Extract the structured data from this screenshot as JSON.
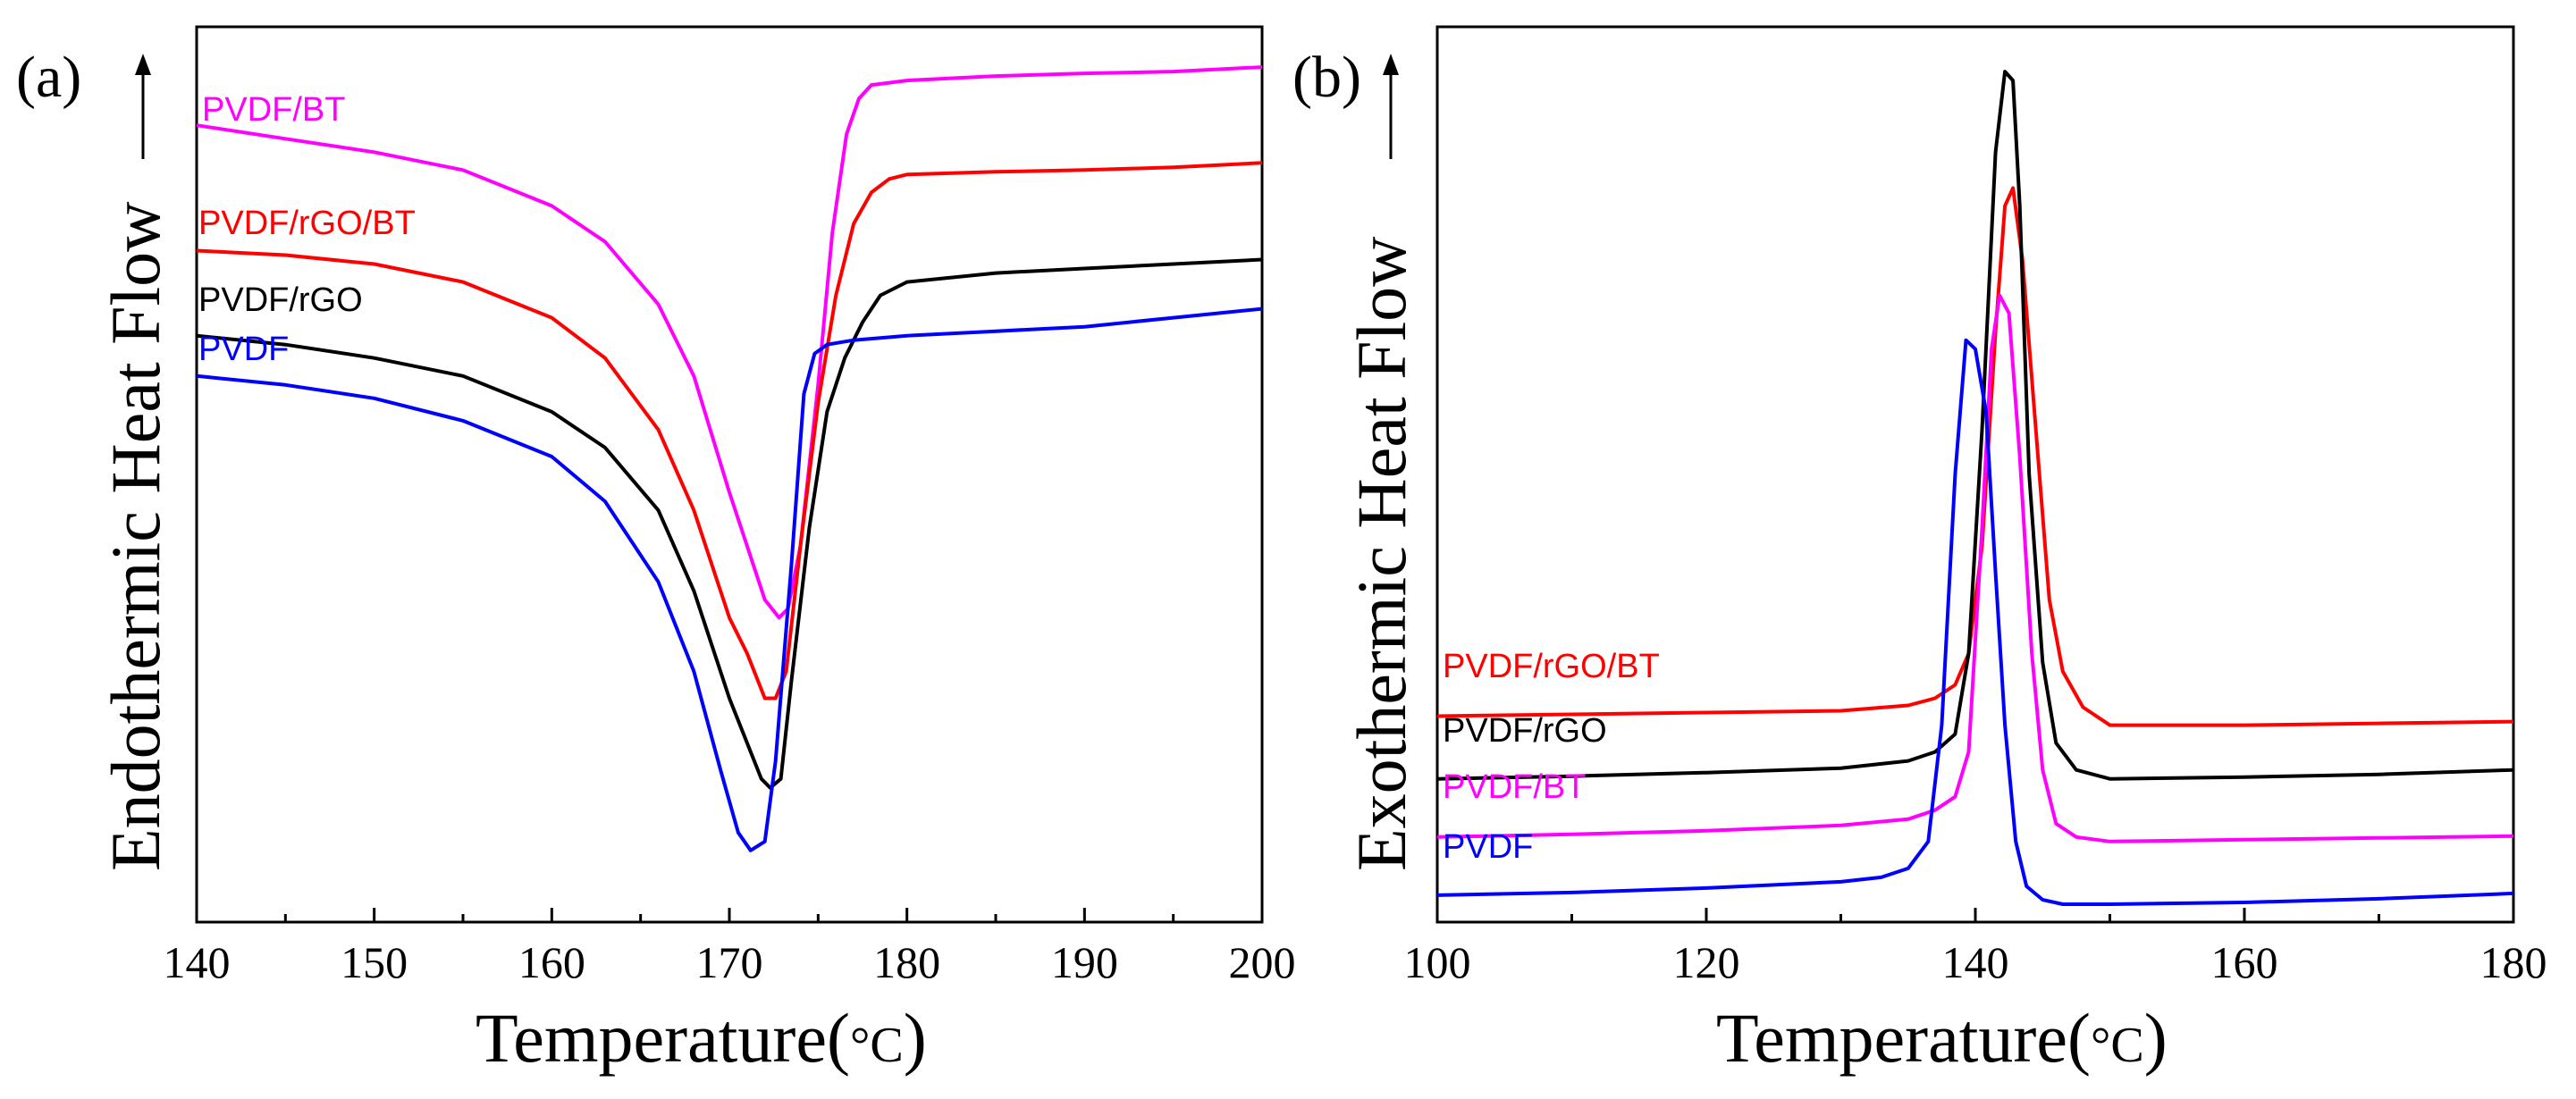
{
  "chart_data": [
    {
      "panel": "(a)",
      "type": "line",
      "xlabel": "Temperature(",
      "xunit": "°C",
      "xunit_close": ")",
      "ylabel": "Endothermic Heat Flow",
      "xlim": [
        140,
        200
      ],
      "ylim": [
        0,
        1
      ],
      "xticks": [
        140,
        150,
        160,
        170,
        180,
        190,
        200
      ],
      "xtick_labels": [
        "140",
        "150",
        "160",
        "170",
        "180",
        "190",
        "200"
      ],
      "y_axis_arrow": "up",
      "series": [
        {
          "name": "PVDF/BT",
          "color": "#ff00ff",
          "x": [
            140,
            145,
            150,
            155,
            160,
            163,
            166,
            168,
            170,
            171,
            172,
            172.8,
            173.3,
            174,
            175,
            175.8,
            176.6,
            177.3,
            178,
            180,
            185,
            190,
            195,
            200
          ],
          "y": [
            0.89,
            0.875,
            0.86,
            0.84,
            0.8,
            0.76,
            0.69,
            0.61,
            0.48,
            0.42,
            0.36,
            0.34,
            0.35,
            0.42,
            0.6,
            0.77,
            0.88,
            0.92,
            0.935,
            0.94,
            0.945,
            0.948,
            0.95,
            0.955
          ]
        },
        {
          "name": "PVDF/rGO/BT",
          "color": "#ff0000",
          "x": [
            140,
            145,
            150,
            155,
            160,
            163,
            166,
            168,
            170,
            171,
            172,
            172.6,
            173.2,
            174,
            175,
            176,
            177,
            178,
            179,
            180,
            185,
            190,
            195,
            200
          ],
          "y": [
            0.75,
            0.745,
            0.735,
            0.715,
            0.675,
            0.63,
            0.55,
            0.46,
            0.34,
            0.3,
            0.25,
            0.25,
            0.28,
            0.42,
            0.58,
            0.7,
            0.78,
            0.815,
            0.83,
            0.835,
            0.838,
            0.84,
            0.843,
            0.848
          ]
        },
        {
          "name": "PVDF/rGO",
          "color": "#000000",
          "x": [
            140,
            145,
            150,
            155,
            160,
            163,
            166,
            168,
            170,
            171,
            171.8,
            172.3,
            172.9,
            173.5,
            174.5,
            175.5,
            176.5,
            177.5,
            178.5,
            180,
            185,
            190,
            195,
            200
          ],
          "y": [
            0.655,
            0.645,
            0.63,
            0.61,
            0.57,
            0.53,
            0.46,
            0.37,
            0.25,
            0.2,
            0.16,
            0.15,
            0.16,
            0.27,
            0.44,
            0.57,
            0.63,
            0.67,
            0.7,
            0.715,
            0.725,
            0.73,
            0.735,
            0.74
          ]
        },
        {
          "name": "PVDF",
          "color": "#0000ff",
          "x": [
            140,
            145,
            150,
            155,
            160,
            163,
            166,
            168,
            169.5,
            170.5,
            171.2,
            172,
            172.6,
            173.5,
            174.2,
            174.8,
            175.5,
            177,
            180,
            185,
            190,
            195,
            200
          ],
          "y": [
            0.61,
            0.6,
            0.585,
            0.56,
            0.52,
            0.47,
            0.38,
            0.28,
            0.17,
            0.1,
            0.08,
            0.09,
            0.18,
            0.4,
            0.59,
            0.635,
            0.645,
            0.65,
            0.655,
            0.66,
            0.665,
            0.675,
            0.685
          ]
        }
      ]
    },
    {
      "panel": "(b)",
      "type": "line",
      "xlabel": "Temperature(",
      "xunit": "°C",
      "xunit_close": ")",
      "ylabel": "Exothermic Heat Flow",
      "xlim": [
        100,
        180
      ],
      "ylim": [
        0,
        1
      ],
      "xticks": [
        100,
        120,
        140,
        160,
        180
      ],
      "xtick_labels": [
        "100",
        "120",
        "140",
        "160",
        "180"
      ],
      "y_axis_arrow": "up",
      "series": [
        {
          "name": "PVDF/rGO/BT",
          "color": "#ff0000",
          "x": [
            100,
            110,
            120,
            130,
            135,
            137,
            138.5,
            139.5,
            140.5,
            141.5,
            142.2,
            142.8,
            143.5,
            144.5,
            145.5,
            146.5,
            148,
            150,
            160,
            170,
            180
          ],
          "y": [
            0.23,
            0.232,
            0.234,
            0.236,
            0.242,
            0.25,
            0.265,
            0.3,
            0.42,
            0.66,
            0.8,
            0.82,
            0.74,
            0.55,
            0.36,
            0.28,
            0.24,
            0.22,
            0.22,
            0.222,
            0.224
          ]
        },
        {
          "name": "PVDF/rGO",
          "color": "#000000",
          "x": [
            100,
            110,
            120,
            130,
            135,
            137,
            138.5,
            139.5,
            140.5,
            141.5,
            142.2,
            142.8,
            143.3,
            144,
            145,
            146,
            147.5,
            150,
            160,
            170,
            180
          ],
          "y": [
            0.16,
            0.163,
            0.167,
            0.172,
            0.18,
            0.19,
            0.21,
            0.3,
            0.55,
            0.86,
            0.95,
            0.94,
            0.8,
            0.5,
            0.29,
            0.2,
            0.17,
            0.16,
            0.162,
            0.165,
            0.17
          ]
        },
        {
          "name": "PVDF/BT",
          "color": "#ff00ff",
          "x": [
            100,
            110,
            120,
            130,
            135,
            137,
            138.5,
            139.5,
            140.5,
            141.2,
            141.8,
            142.5,
            143.3,
            144.2,
            145,
            146,
            147.5,
            150,
            160,
            170,
            180
          ],
          "y": [
            0.095,
            0.098,
            0.102,
            0.108,
            0.115,
            0.125,
            0.14,
            0.19,
            0.44,
            0.64,
            0.7,
            0.68,
            0.52,
            0.3,
            0.17,
            0.11,
            0.095,
            0.09,
            0.092,
            0.094,
            0.096
          ]
        },
        {
          "name": "PVDF",
          "color": "#0000ff",
          "x": [
            100,
            110,
            120,
            130,
            133,
            135,
            136.5,
            137.5,
            138.5,
            139.3,
            140,
            140.8,
            141.5,
            142.2,
            143,
            143.8,
            145,
            146.5,
            150,
            160,
            170,
            180
          ],
          "y": [
            0.03,
            0.033,
            0.038,
            0.045,
            0.05,
            0.06,
            0.09,
            0.22,
            0.5,
            0.65,
            0.64,
            0.57,
            0.39,
            0.22,
            0.09,
            0.04,
            0.025,
            0.02,
            0.02,
            0.022,
            0.026,
            0.032
          ]
        }
      ]
    }
  ]
}
